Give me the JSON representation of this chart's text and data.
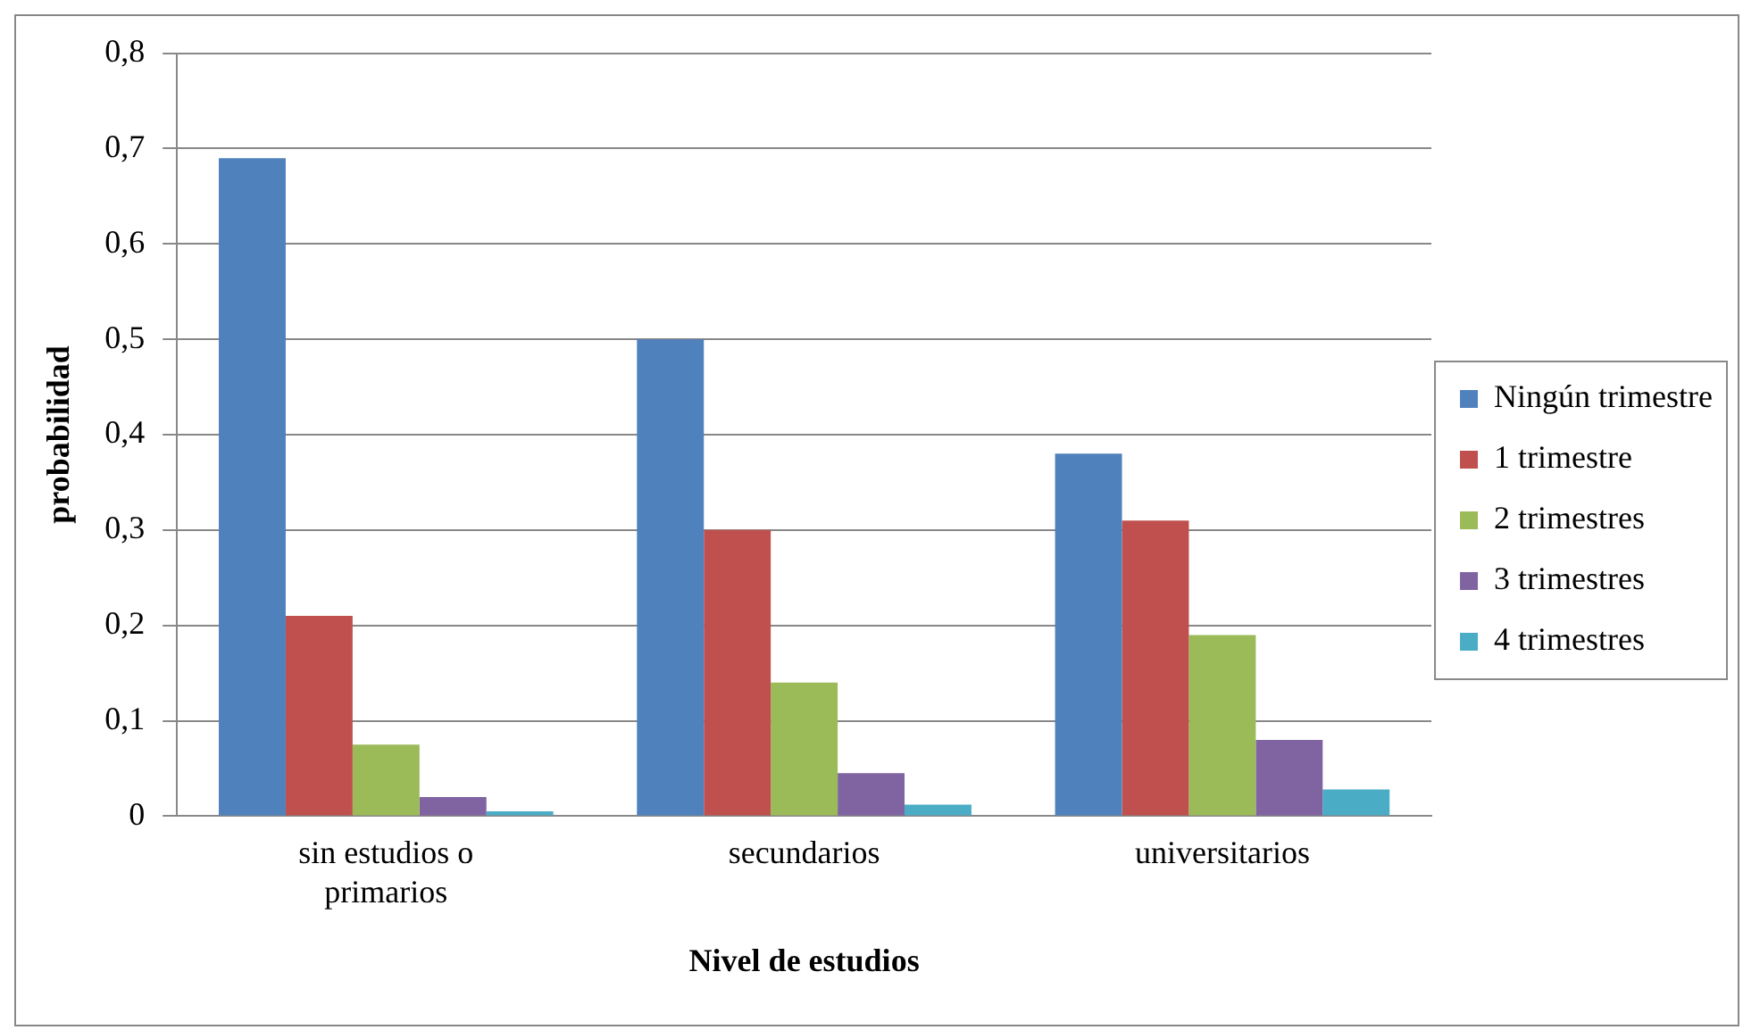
{
  "chart_data": {
    "type": "bar",
    "xlabel": "Nivel de estudios",
    "ylabel": "probabilidad",
    "categories": [
      "sin estudios o primarios",
      "secundarios",
      "universitarios"
    ],
    "series": [
      {
        "name": "Ningún trimestre",
        "color": "#4f81bd",
        "values": [
          0.69,
          0.5,
          0.38
        ]
      },
      {
        "name": "1 trimestre",
        "color": "#c0504d",
        "values": [
          0.21,
          0.3,
          0.31
        ]
      },
      {
        "name": "2 trimestres",
        "color": "#9bbb59",
        "values": [
          0.075,
          0.14,
          0.19
        ]
      },
      {
        "name": "3 trimestres",
        "color": "#8064a2",
        "values": [
          0.02,
          0.045,
          0.08
        ]
      },
      {
        "name": "4 trimestres",
        "color": "#4bacc6",
        "values": [
          0.005,
          0.012,
          0.028
        ]
      }
    ],
    "ylim": [
      0,
      0.8
    ],
    "yticks": [
      0,
      {
        "value": 0.1,
        "label": "0,1"
      },
      {
        "value": 0.2,
        "label": "0,2"
      },
      {
        "value": 0.3,
        "label": "0,3"
      },
      {
        "value": 0.4,
        "label": "0,4"
      },
      {
        "value": 0.5,
        "label": "0,5"
      },
      {
        "value": 0.6,
        "label": "0,6"
      },
      {
        "value": 0.7,
        "label": "0,7"
      },
      {
        "value": 0.8,
        "label": "0,8"
      }
    ],
    "grid": "y",
    "legend": "right"
  }
}
